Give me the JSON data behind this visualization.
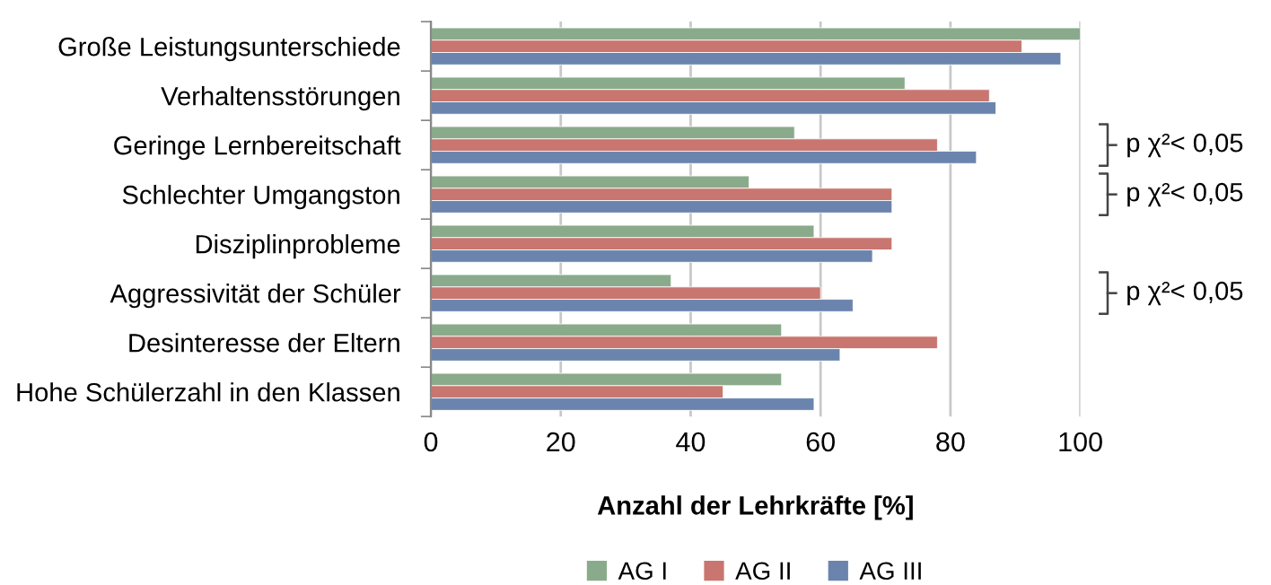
{
  "chart_data": {
    "type": "bar",
    "orientation": "horizontal",
    "xlabel": "Anzahl der Lehrkräfte [%]",
    "categories": [
      "Große Leistungsunterschiede",
      "Verhaltensstörungen",
      "Geringe Lernbereitschaft",
      "Schlechter Umgangston",
      "Disziplinprobleme",
      "Aggressivität der Schüler",
      "Desinteresse der Eltern",
      "Hohe Schülerzahl in den Klassen"
    ],
    "series": [
      {
        "name": "AG I",
        "color": "#8aab8b",
        "values": [
          100,
          73,
          56,
          49,
          59,
          37,
          54,
          54
        ]
      },
      {
        "name": "AG II",
        "color": "#c8766f",
        "values": [
          91,
          86,
          78,
          71,
          71,
          60,
          78,
          45
        ]
      },
      {
        "name": "AG III",
        "color": "#6a84ad",
        "values": [
          97,
          87,
          84,
          71,
          68,
          65,
          63,
          59
        ]
      }
    ],
    "xlim": [
      0,
      100
    ],
    "xticks": [
      0,
      20,
      40,
      60,
      80,
      100
    ],
    "grid": "x",
    "legend": "bottom",
    "annotations": [
      "p χ²< 0,05",
      "p χ²< 0,05",
      "p χ²< 0,05"
    ]
  }
}
